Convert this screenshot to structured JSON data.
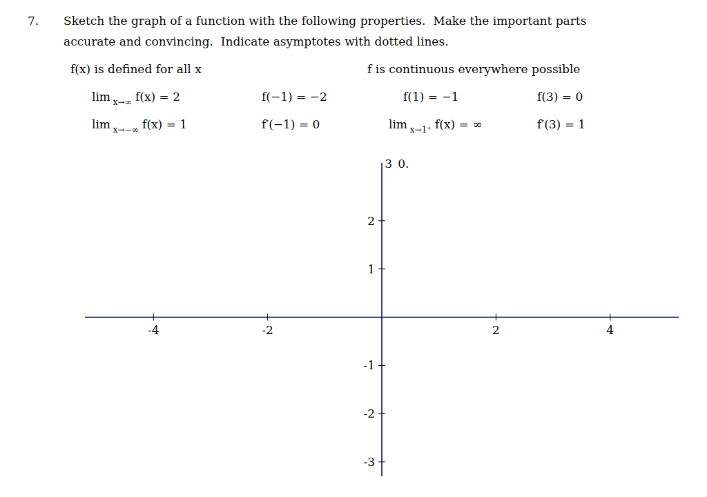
{
  "chart_data": {
    "type": "blank",
    "title": "7.",
    "subtitle": [
      [
        "Sketch the graph of a function with the following properties.  Make the important parts"
      ],
      [
        "accurate and convincing.  Indicate asymptotes with dotted lines."
      ],
      [
        "f(x) is defined for all x",
        "f is continuous everywhere possible"
      ],
      [
        "lim x→∞ f(x) = 2",
        "f(−1) = −2",
        "f(1) = −1",
        "f(3) = 0"
      ],
      [
        "lim x→−∞ f(x) = 1",
        "f′(−1) = 0",
        "lim x→1⁺ f(x) = ∞",
        "f′(3) = 1"
      ]
    ],
    "annotations": [
      {
        "text": "3",
        "x": 0.05,
        "y": 3.05
      },
      {
        "text": "0.",
        "x": 0.28,
        "y": 3.05
      }
    ],
    "xlim": [
      -5.2,
      5.2
    ],
    "ylim": [
      -3.3,
      3.2
    ],
    "xticks": [
      -4,
      -2,
      2,
      4
    ],
    "yticks": [
      -3,
      -2,
      -1,
      1,
      2
    ],
    "color": "#00008B"
  }
}
